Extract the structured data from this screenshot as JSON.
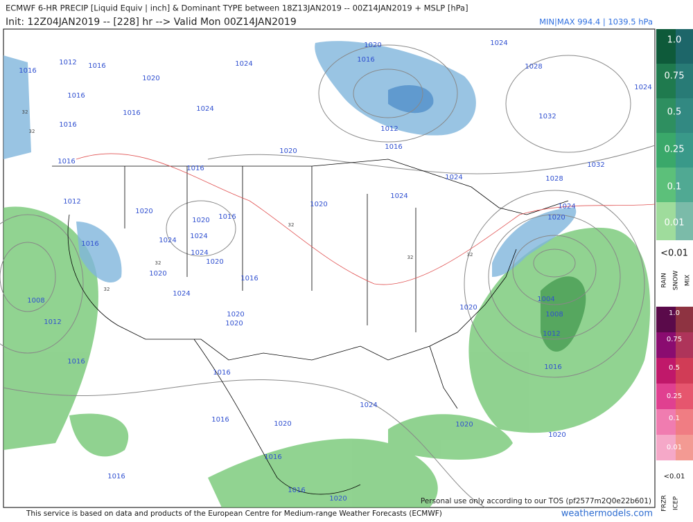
{
  "header": {
    "title": "ECMWF 6-HR PRECIP [Liquid Equiv | inch] & Dominant TYPE between 18Z13JAN2019 -- 00Z14JAN2019 + MSLP [hPa]",
    "subtitle": "Init: 12Z04JAN2019 -- [228] hr --> Valid Mon 00Z14JAN2019",
    "minmax": "MIN|MAX 994.4 | 1039.5 hPa"
  },
  "legend": {
    "snow_scale": [
      "1.0",
      "0.75",
      "0.5",
      "0.25",
      "0.1",
      "0.01"
    ],
    "snow_below": "<0.01",
    "snow_types": [
      "RAIN",
      "SNOW",
      "MIX"
    ],
    "ice_scale": [
      "1.0",
      "0.75",
      "0.5",
      "0.25",
      "0.1",
      "0.01"
    ],
    "ice_below": "<0.01",
    "ice_types": [
      "FRZR",
      "ICEP"
    ]
  },
  "isobar_labels": [
    "1016",
    "1012",
    "1016",
    "1020",
    "1016",
    "1016",
    "1016",
    "1012",
    "1016",
    "1008",
    "1012",
    "1016",
    "1016",
    "1024",
    "1024",
    "1020",
    "1020",
    "1016",
    "1016",
    "1024",
    "1024",
    "1024",
    "1020",
    "1020",
    "1024",
    "1016",
    "1020",
    "1020",
    "1020",
    "1020",
    "1020",
    "1016",
    "1012",
    "1016",
    "1024",
    "1024",
    "1024",
    "1028",
    "1024",
    "1032",
    "1032",
    "1028",
    "1024",
    "1020",
    "1004",
    "1008",
    "1012",
    "1016",
    "1020",
    "1016",
    "1016",
    "1020",
    "1024",
    "1020",
    "1020",
    "1016",
    "1016",
    "1016",
    "1020"
  ],
  "freezing_labels": [
    "32",
    "32",
    "32",
    "32",
    "32",
    "32",
    "32"
  ],
  "footer": {
    "notice": "This service is based on data and products of the European Centre for Medium-range Weather Forecasts (ECMWF)",
    "site": "weathermodels.com",
    "tos": "Personal use only according to our TOS (pf2577m2Q0e22b601)"
  }
}
